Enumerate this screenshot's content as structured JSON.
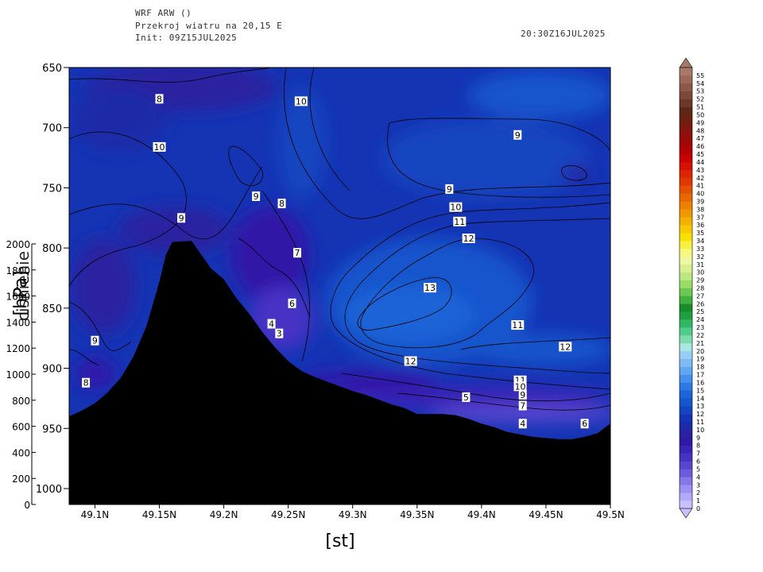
{
  "header": {
    "model": "WRF ARW ()",
    "title": "Przekroj wiatru na 20,15 E",
    "init": "Init: 09Z15JUL2025",
    "valid": "20:30Z16JUL2025"
  },
  "chart_data": {
    "type": "heatmap",
    "subtype": "vertical-cross-section-filled-contour",
    "xlabel": "[st]",
    "ylabel_left": "[hPa]",
    "ylabel_left_rotated": "cisnienie",
    "ylabel_height": "[m]",
    "x_ticks": [
      "49.1N",
      "49.15N",
      "49.2N",
      "49.25N",
      "49.3N",
      "49.35N",
      "49.4N",
      "49.45N",
      "49.5N"
    ],
    "x_tick_values": [
      49.1,
      49.15,
      49.2,
      49.25,
      49.3,
      49.35,
      49.4,
      49.45,
      49.5
    ],
    "xlim": [
      49.08,
      49.5
    ],
    "pressure_ticks": [
      "650",
      "700",
      "750",
      "800",
      "850",
      "900",
      "950",
      "1000"
    ],
    "pressure_tick_values": [
      650,
      700,
      750,
      800,
      850,
      900,
      950,
      1000
    ],
    "ylim_pressure": [
      650,
      1013
    ],
    "height_ticks": [
      "0",
      "200",
      "400",
      "600",
      "800",
      "1000",
      "1200",
      "1400",
      "1600",
      "1800",
      "2000"
    ],
    "height_tick_values": [
      0,
      200,
      400,
      600,
      800,
      1000,
      1200,
      1400,
      1600,
      1800,
      2000
    ],
    "colorbar": {
      "labels": [
        "0",
        "1",
        "2",
        "3",
        "4",
        "5",
        "6",
        "7",
        "8",
        "9",
        "10",
        "11",
        "12",
        "13",
        "14",
        "15",
        "16",
        "17",
        "18",
        "19",
        "20",
        "21",
        "22",
        "23",
        "24",
        "25",
        "26",
        "27",
        "28",
        "29",
        "30",
        "31",
        "32",
        "33",
        "34",
        "35",
        "36",
        "37",
        "38",
        "39",
        "40",
        "41",
        "42",
        "43",
        "44",
        "45",
        "46",
        "47",
        "48",
        "49",
        "50",
        "51",
        "52",
        "53",
        "54",
        "55"
      ],
      "colors": [
        "#c8c0ff",
        "#b4a8fa",
        "#9c90f2",
        "#8478e6",
        "#6c5cdc",
        "#5846d0",
        "#4632c4",
        "#3a24b6",
        "#3018a8",
        "#2a20a0",
        "#1a2aa8",
        "#1434b4",
        "#1444c0",
        "#1454cc",
        "#1c64d8",
        "#2c78e4",
        "#4490ec",
        "#60a6f0",
        "#7cbaf4",
        "#98cef6",
        "#a8e8e0",
        "#7cdcb0",
        "#50cc88",
        "#30b864",
        "#1ca040",
        "#188c28",
        "#40b040",
        "#6cc850",
        "#98dc64",
        "#bce880",
        "#d8f090",
        "#eef8a0",
        "#f8f880",
        "#f8f040",
        "#f8e000",
        "#f8c800",
        "#f4b000",
        "#f09800",
        "#ec8000",
        "#e86800",
        "#e45000",
        "#e03800",
        "#dc2400",
        "#d81000",
        "#c80000",
        "#b40000",
        "#a00808",
        "#901010",
        "#7c1810",
        "#6c2010",
        "#5c2818",
        "#6c3828",
        "#7c4838",
        "#8c5848",
        "#9c6858",
        "#a87868"
      ]
    },
    "contour_labels": [
      {
        "value": "8",
        "lat": 49.15,
        "p": 676
      },
      {
        "value": "10",
        "lat": 49.15,
        "p": 716
      },
      {
        "value": "10",
        "lat": 49.26,
        "p": 678
      },
      {
        "value": "9",
        "lat": 49.428,
        "p": 706
      },
      {
        "value": "9",
        "lat": 49.225,
        "p": 757
      },
      {
        "value": "8",
        "lat": 49.245,
        "p": 763
      },
      {
        "value": "9",
        "lat": 49.167,
        "p": 775
      },
      {
        "value": "9",
        "lat": 49.375,
        "p": 751
      },
      {
        "value": "10",
        "lat": 49.38,
        "p": 766
      },
      {
        "value": "11",
        "lat": 49.383,
        "p": 778
      },
      {
        "value": "12",
        "lat": 49.39,
        "p": 792
      },
      {
        "value": "7",
        "lat": 49.257,
        "p": 804
      },
      {
        "value": "13",
        "lat": 49.36,
        "p": 833
      },
      {
        "value": "6",
        "lat": 49.253,
        "p": 846
      },
      {
        "value": "4",
        "lat": 49.237,
        "p": 863
      },
      {
        "value": "3",
        "lat": 49.243,
        "p": 871
      },
      {
        "value": "11",
        "lat": 49.428,
        "p": 864
      },
      {
        "value": "12",
        "lat": 49.465,
        "p": 882
      },
      {
        "value": "9",
        "lat": 49.1,
        "p": 877
      },
      {
        "value": "12",
        "lat": 49.345,
        "p": 894
      },
      {
        "value": "8",
        "lat": 49.093,
        "p": 912
      },
      {
        "value": "11",
        "lat": 49.43,
        "p": 910
      },
      {
        "value": "10",
        "lat": 49.43,
        "p": 915
      },
      {
        "value": "5",
        "lat": 49.388,
        "p": 924
      },
      {
        "value": "9",
        "lat": 49.432,
        "p": 922
      },
      {
        "value": "7",
        "lat": 49.432,
        "p": 931
      },
      {
        "value": "4",
        "lat": 49.432,
        "p": 946
      },
      {
        "value": "6",
        "lat": 49.48,
        "p": 946
      }
    ],
    "terrain_surface_pressure": [
      {
        "lat": 49.08,
        "p": 940
      },
      {
        "lat": 49.09,
        "p": 935
      },
      {
        "lat": 49.1,
        "p": 929
      },
      {
        "lat": 49.11,
        "p": 920
      },
      {
        "lat": 49.12,
        "p": 908
      },
      {
        "lat": 49.13,
        "p": 890
      },
      {
        "lat": 49.14,
        "p": 865
      },
      {
        "lat": 49.15,
        "p": 828
      },
      {
        "lat": 49.155,
        "p": 806
      },
      {
        "lat": 49.16,
        "p": 795
      },
      {
        "lat": 49.175,
        "p": 794
      },
      {
        "lat": 49.19,
        "p": 817
      },
      {
        "lat": 49.2,
        "p": 826
      },
      {
        "lat": 49.21,
        "p": 842
      },
      {
        "lat": 49.22,
        "p": 855
      },
      {
        "lat": 49.23,
        "p": 870
      },
      {
        "lat": 49.24,
        "p": 883
      },
      {
        "lat": 49.25,
        "p": 894
      },
      {
        "lat": 49.26,
        "p": 902
      },
      {
        "lat": 49.27,
        "p": 907
      },
      {
        "lat": 49.28,
        "p": 911
      },
      {
        "lat": 49.29,
        "p": 915
      },
      {
        "lat": 49.3,
        "p": 919
      },
      {
        "lat": 49.31,
        "p": 922
      },
      {
        "lat": 49.32,
        "p": 926
      },
      {
        "lat": 49.33,
        "p": 930
      },
      {
        "lat": 49.34,
        "p": 933
      },
      {
        "lat": 49.35,
        "p": 938
      },
      {
        "lat": 49.36,
        "p": 938
      },
      {
        "lat": 49.37,
        "p": 938
      },
      {
        "lat": 49.38,
        "p": 939
      },
      {
        "lat": 49.39,
        "p": 942
      },
      {
        "lat": 49.4,
        "p": 946
      },
      {
        "lat": 49.41,
        "p": 949
      },
      {
        "lat": 49.42,
        "p": 953
      },
      {
        "lat": 49.43,
        "p": 955
      },
      {
        "lat": 49.44,
        "p": 957
      },
      {
        "lat": 49.45,
        "p": 958
      },
      {
        "lat": 49.46,
        "p": 959
      },
      {
        "lat": 49.47,
        "p": 959
      },
      {
        "lat": 49.48,
        "p": 957
      },
      {
        "lat": 49.49,
        "p": 954
      },
      {
        "lat": 49.5,
        "p": 946
      }
    ]
  }
}
